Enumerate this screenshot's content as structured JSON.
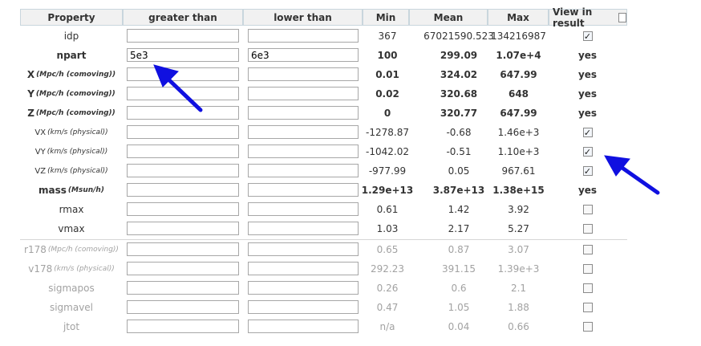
{
  "headers": {
    "property": "Property",
    "greater_than": "greater than",
    "lower_than": "lower than",
    "min": "Min",
    "mean": "Mean",
    "max": "Max",
    "view_in_result": "View in result"
  },
  "rows": [
    {
      "name": "idp",
      "unit": "",
      "greater": "",
      "lower": "",
      "min": "367",
      "mean": "67021590.523",
      "max": "134216987",
      "view": "checkbox",
      "checked": true,
      "style": "normal"
    },
    {
      "name": "npart",
      "unit": "",
      "greater": "5e3",
      "lower": "6e3",
      "min": "100",
      "mean": "299.09",
      "max": "1.07e+4",
      "view": "yes",
      "checked": true,
      "style": "bold"
    },
    {
      "name": "X",
      "unit": "(Mpc/h (comoving))",
      "greater": "",
      "lower": "",
      "min": "0.01",
      "mean": "324.02",
      "max": "647.99",
      "view": "yes",
      "checked": true,
      "style": "bold"
    },
    {
      "name": "Y",
      "unit": "(Mpc/h (comoving))",
      "greater": "",
      "lower": "",
      "min": "0.02",
      "mean": "320.68",
      "max": "648",
      "view": "yes",
      "checked": true,
      "style": "bold"
    },
    {
      "name": "Z",
      "unit": "(Mpc/h (comoving))",
      "greater": "",
      "lower": "",
      "min": "0",
      "mean": "320.77",
      "max": "647.99",
      "view": "yes",
      "checked": true,
      "style": "bold"
    },
    {
      "name": "VX",
      "unit": "(km/s (physical))",
      "greater": "",
      "lower": "",
      "min": "-1278.87",
      "mean": "-0.68",
      "max": "1.46e+3",
      "view": "checkbox",
      "checked": true,
      "style": "small"
    },
    {
      "name": "VY",
      "unit": "(km/s (physical))",
      "greater": "",
      "lower": "",
      "min": "-1042.02",
      "mean": "-0.51",
      "max": "1.10e+3",
      "view": "checkbox",
      "checked": true,
      "style": "small"
    },
    {
      "name": "VZ",
      "unit": "(km/s (physical))",
      "greater": "",
      "lower": "",
      "min": "-977.99",
      "mean": "0.05",
      "max": "967.61",
      "view": "checkbox",
      "checked": true,
      "style": "small"
    },
    {
      "name": "mass",
      "unit": "(Msun/h)",
      "greater": "",
      "lower": "",
      "min": "1.29e+13",
      "mean": "3.87e+13",
      "max": "1.38e+15",
      "view": "yes",
      "checked": true,
      "style": "bold"
    },
    {
      "name": "rmax",
      "unit": "",
      "greater": "",
      "lower": "",
      "min": "0.61",
      "mean": "1.42",
      "max": "3.92",
      "view": "checkbox",
      "checked": false,
      "style": "normal"
    },
    {
      "name": "vmax",
      "unit": "",
      "greater": "",
      "lower": "",
      "min": "1.03",
      "mean": "2.17",
      "max": "5.27",
      "view": "checkbox",
      "checked": false,
      "style": "normal"
    },
    {
      "name": "r178",
      "unit": "(Mpc/h (comoving))",
      "greater": "",
      "lower": "",
      "min": "0.65",
      "mean": "0.87",
      "max": "3.07",
      "view": "checkbox",
      "checked": false,
      "style": "dim"
    },
    {
      "name": "v178",
      "unit": "(km/s (physical))",
      "greater": "",
      "lower": "",
      "min": "292.23",
      "mean": "391.15",
      "max": "1.39e+3",
      "view": "checkbox",
      "checked": false,
      "style": "dim"
    },
    {
      "name": "sigmapos",
      "unit": "",
      "greater": "",
      "lower": "",
      "min": "0.26",
      "mean": "0.6",
      "max": "2.1",
      "view": "checkbox",
      "checked": false,
      "style": "dim"
    },
    {
      "name": "sigmavel",
      "unit": "",
      "greater": "",
      "lower": "",
      "min": "0.47",
      "mean": "1.05",
      "max": "1.88",
      "view": "checkbox",
      "checked": false,
      "style": "dim"
    },
    {
      "name": "jtot",
      "unit": "",
      "greater": "",
      "lower": "",
      "min": "n/a",
      "mean": "0.04",
      "max": "0.66",
      "view": "checkbox",
      "checked": false,
      "style": "dim"
    }
  ],
  "colors": {
    "header_bg": "#f1f1f1",
    "header_border": "#c9d6dd",
    "text": "#333333",
    "dim_text": "#a2a2a2",
    "annotation_arrow": "#1010e0"
  },
  "icons": {
    "checkmark": "✓",
    "annotation": "arrow-icon"
  }
}
